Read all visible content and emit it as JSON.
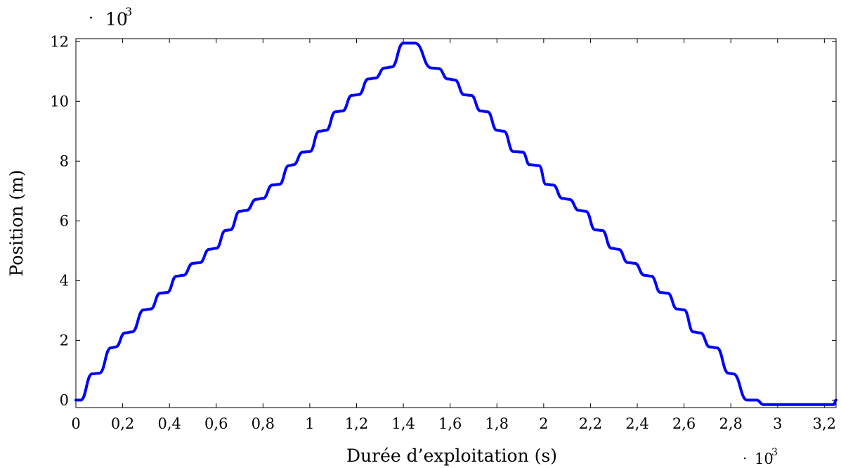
{
  "chart_data": {
    "type": "line",
    "title": "",
    "xlabel": "Durée d’exploitation (s)",
    "ylabel": "Position (m)",
    "x_multiplier": {
      "dot": "·",
      "base": "10",
      "exp": "3"
    },
    "y_multiplier": {
      "dot": "·",
      "base": "10",
      "exp": "3"
    },
    "xlim": [
      0,
      3.25
    ],
    "ylim": [
      -0.25,
      12.1
    ],
    "x_ticks": [
      0,
      0.2,
      0.4,
      0.6,
      0.8,
      1,
      1.2,
      1.4,
      1.6,
      1.8,
      2,
      2.2,
      2.4,
      2.6,
      2.8,
      3,
      3.2
    ],
    "x_tick_labels": [
      "0",
      "0,2",
      "0,4",
      "0,6",
      "0,8",
      "1",
      "1,2",
      "1,4",
      "1,6",
      "1,8",
      "2",
      "2,2",
      "2,4",
      "2,6",
      "2,8",
      "3",
      "3,2"
    ],
    "y_ticks": [
      0,
      2,
      4,
      6,
      8,
      10,
      12
    ],
    "y_tick_labels": [
      "0",
      "2",
      "4",
      "6",
      "8",
      "10",
      "12"
    ],
    "grid": false,
    "legend": "none",
    "series": [
      {
        "color": "#0000ff",
        "x": [
          0,
          0.02,
          0.07,
          0.1,
          0.15,
          0.17,
          0.21,
          0.24,
          0.29,
          0.32,
          0.36,
          0.39,
          0.43,
          0.46,
          0.5,
          0.53,
          0.57,
          0.6,
          0.64,
          0.66,
          0.7,
          0.73,
          0.77,
          0.8,
          0.84,
          0.87,
          0.91,
          0.93,
          0.97,
          1.0,
          1.04,
          1.07,
          1.11,
          1.14,
          1.18,
          1.21,
          1.25,
          1.28,
          1.32,
          1.35,
          1.4,
          1.45,
          1.52,
          1.55,
          1.59,
          1.62,
          1.66,
          1.69,
          1.73,
          1.76,
          1.8,
          1.83,
          1.87,
          1.91,
          1.94,
          1.98,
          2.01,
          2.04,
          2.08,
          2.11,
          2.15,
          2.18,
          2.22,
          2.25,
          2.29,
          2.32,
          2.36,
          2.39,
          2.43,
          2.46,
          2.5,
          2.53,
          2.57,
          2.6,
          2.64,
          2.67,
          2.71,
          2.74,
          2.79,
          2.81,
          2.87,
          2.91,
          2.94,
          3.0,
          3.1,
          3.2,
          3.24,
          3.25
        ],
        "y": [
          0,
          0,
          0.88,
          0.9,
          1.75,
          1.78,
          2.25,
          2.28,
          3.02,
          3.05,
          3.58,
          3.6,
          4.15,
          4.18,
          4.58,
          4.6,
          5.05,
          5.08,
          5.68,
          5.7,
          6.32,
          6.35,
          6.72,
          6.75,
          7.2,
          7.22,
          7.85,
          7.88,
          8.3,
          8.32,
          9.0,
          9.03,
          9.65,
          9.68,
          10.2,
          10.23,
          10.75,
          10.78,
          11.12,
          11.15,
          11.95,
          11.95,
          11.12,
          11.1,
          10.75,
          10.72,
          10.22,
          10.2,
          9.68,
          9.65,
          9.03,
          9.0,
          8.32,
          8.3,
          7.88,
          7.85,
          7.22,
          7.2,
          6.75,
          6.72,
          6.35,
          6.32,
          5.7,
          5.68,
          5.08,
          5.05,
          4.6,
          4.58,
          4.18,
          4.15,
          3.6,
          3.58,
          3.05,
          3.02,
          2.28,
          2.25,
          1.78,
          1.75,
          0.9,
          0.88,
          0,
          0,
          -0.15,
          -0.15,
          -0.15,
          -0.15,
          -0.15,
          0
        ]
      }
    ]
  }
}
